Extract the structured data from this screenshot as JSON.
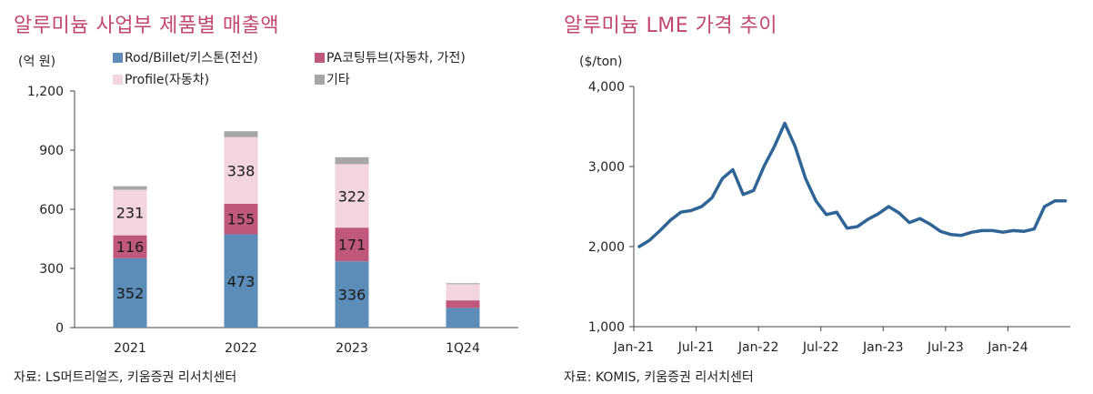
{
  "left_panel": {
    "title": "알루미늄 사업부 제품별 매출액",
    "source": "자료: LS머트리얼즈, 키움증권 리서치센터"
  },
  "right_panel": {
    "title": "알루미늄 LME 가격 추이",
    "source": "자료: KOMIS, 키움증권 리서치센터"
  },
  "chart_data": [
    {
      "type": "bar",
      "stacked": true,
      "title": "알루미늄 사업부 제품별 매출액",
      "ylabel": "(억 원)",
      "ylim": [
        0,
        1200
      ],
      "yticks": [
        0,
        300,
        600,
        900,
        1200
      ],
      "ytick_labels": [
        "0",
        "300",
        "600",
        "900",
        "1,200"
      ],
      "categories": [
        "2021",
        "2022",
        "2023",
        "1Q24"
      ],
      "series": [
        {
          "name": "Rod/Billet/키스톤(전선)",
          "color": "#5b8db8",
          "values": [
            352,
            473,
            336,
            100
          ],
          "labels": [
            "352",
            "473",
            "336",
            ""
          ]
        },
        {
          "name": "PA코팅튜브(자동차, 가전)",
          "color": "#c0587e",
          "values": [
            116,
            155,
            171,
            38
          ],
          "labels": [
            "116",
            "155",
            "171",
            ""
          ]
        },
        {
          "name": "Profile(자동차)",
          "color": "#f2d5df",
          "values": [
            231,
            338,
            322,
            82
          ],
          "labels": [
            "231",
            "338",
            "322",
            ""
          ]
        },
        {
          "name": "기타",
          "color": "#a6a6a6",
          "values": [
            18,
            30,
            35,
            5
          ],
          "labels": [
            "",
            "",
            "",
            ""
          ]
        }
      ],
      "legend_position": "top"
    },
    {
      "type": "line",
      "title": "알루미늄 LME 가격 추이",
      "ylabel": "($/ton)",
      "ylim": [
        1000,
        4000
      ],
      "yticks": [
        1000,
        2000,
        3000,
        4000
      ],
      "ytick_labels": [
        "1,000",
        "2,000",
        "3,000",
        "4,000"
      ],
      "xtick_labels": [
        "Jan-21",
        "Jul-21",
        "Jan-22",
        "Jul-22",
        "Jan-23",
        "Jul-23",
        "Jan-24"
      ],
      "xtick_index": [
        0,
        6,
        12,
        18,
        24,
        30,
        36
      ],
      "n_periods": 42,
      "series": [
        {
          "name": "LME Aluminium",
          "color": "#2e6596",
          "x": [
            0,
            1,
            2,
            3,
            4,
            5,
            6,
            7,
            8,
            9,
            10,
            11,
            12,
            13,
            14,
            15,
            16,
            17,
            18,
            19,
            20,
            21,
            22,
            23,
            24,
            25,
            26,
            27,
            28,
            29,
            30,
            31,
            32,
            33,
            34,
            35,
            36,
            37,
            38,
            39,
            40,
            41
          ],
          "values": [
            2000,
            2080,
            2200,
            2330,
            2430,
            2450,
            2500,
            2610,
            2850,
            2960,
            2650,
            2700,
            3000,
            3250,
            3540,
            3250,
            2850,
            2570,
            2400,
            2430,
            2230,
            2250,
            2340,
            2410,
            2500,
            2420,
            2300,
            2350,
            2280,
            2190,
            2150,
            2140,
            2180,
            2200,
            2200,
            2180,
            2200,
            2190,
            2220,
            2500,
            2570,
            2570
          ]
        }
      ]
    }
  ]
}
